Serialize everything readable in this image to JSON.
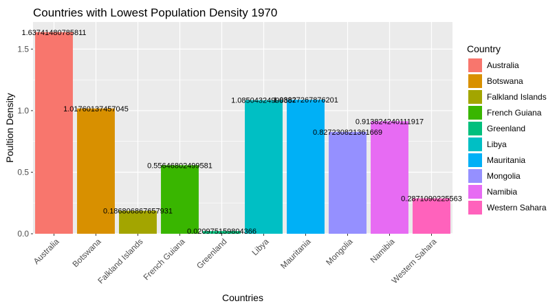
{
  "chart_data": {
    "type": "bar",
    "title": "Countries with Lowest Population Density 1970",
    "xlabel": "Countries",
    "ylabel": "Poultion Density",
    "ylim": [
      0,
      1.72
    ],
    "yticks": [
      0.0,
      0.5,
      1.0,
      1.5
    ],
    "ytick_labels": [
      "0.0",
      "0.5",
      "1.0",
      "1.5"
    ],
    "categories": [
      "Australia",
      "Botswana",
      "Falkland Islands",
      "French Guiana",
      "Greenland",
      "Libya",
      "Mauritania",
      "Mongolia",
      "Namibia",
      "Western Sahara"
    ],
    "values": [
      1.63741480785811,
      1.01760137457045,
      0.186806867657931,
      0.55646802499581,
      0.0209751598043661,
      1.08504324998387,
      1.08827267876201,
      0.82723082136167,
      0.913824240111917,
      0.2871090225563
    ],
    "data_labels": [
      "1.63741480785811",
      "1.01760137457045",
      "0.186806867657931",
      "0.55646802499581",
      "0.020975159804366",
      "1.08504324998387",
      "1.08827267876201",
      "0.827230821361669",
      "0.913824240111917",
      "0.2871090225563"
    ],
    "colors": [
      "#F8766D",
      "#D89000",
      "#A3A500",
      "#39B600",
      "#00BF7D",
      "#00BFC4",
      "#00B0F6",
      "#9590FF",
      "#E76BF3",
      "#FF62BC"
    ],
    "grid": true,
    "legend": {
      "title": "Country",
      "position": "right",
      "entries": [
        "Australia",
        "Botswana",
        "Falkland Islands",
        "French Guiana",
        "Greenland",
        "Libya",
        "Mauritania",
        "Mongolia",
        "Namibia",
        "Western Sahara"
      ]
    },
    "panel_background": "#EBEBEB",
    "grid_color": "#FFFFFF"
  }
}
